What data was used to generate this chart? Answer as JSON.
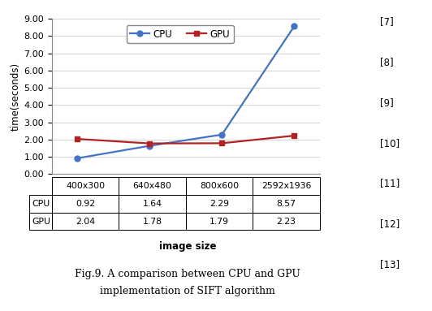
{
  "categories": [
    "400x300",
    "640x480",
    "800x600",
    "2592x1936"
  ],
  "cpu_values": [
    0.92,
    1.64,
    2.29,
    8.57
  ],
  "gpu_values": [
    2.04,
    1.78,
    1.79,
    2.23
  ],
  "cpu_color": "#4472C4",
  "gpu_color": "#B22222",
  "ylabel": "time(seconds)",
  "xlabel": "image size",
  "ylim": [
    0.0,
    9.0
  ],
  "yticks": [
    0.0,
    1.0,
    2.0,
    3.0,
    4.0,
    5.0,
    6.0,
    7.0,
    8.0,
    9.0
  ],
  "title_line1": "Fig.9. A comparison between CPU and GPU",
  "title_line2": "implementation of SIFT algorithm",
  "legend_cpu": "CPU",
  "legend_gpu": "GPU",
  "table_row_labels": [
    "CPU",
    "GPU"
  ],
  "ref_labels": [
    "[7]",
    "[8]",
    "[9]",
    "[10]",
    "[11]",
    "[12]",
    "[13]"
  ],
  "background_color": "#FFFFFF"
}
